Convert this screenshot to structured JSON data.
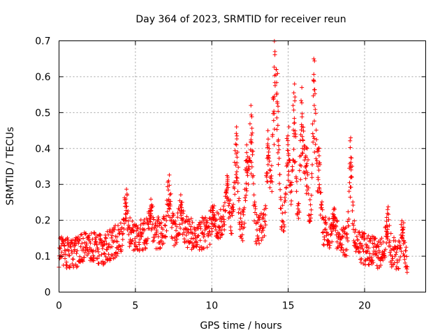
{
  "chart_data": {
    "type": "scatter",
    "title": "Day 364 of 2023, SRMTID for receiver reun",
    "xlabel": "GPS time / hours",
    "ylabel": "SRMTID / TECUs",
    "xlim": [
      0,
      24
    ],
    "ylim": [
      0,
      0.7
    ],
    "xticks": [
      0,
      5,
      10,
      15,
      20
    ],
    "xtick_labels": [
      "0",
      "5",
      "10",
      "15",
      "20"
    ],
    "yticks": [
      0,
      0.1,
      0.2,
      0.3,
      0.4,
      0.5,
      0.6,
      0.7
    ],
    "ytick_labels": [
      "0",
      "0.1",
      "0.2",
      "0.3",
      "0.4",
      "0.5",
      "0.6",
      "0.7"
    ],
    "grid": true,
    "marker": "+",
    "marker_color": "#ff0000",
    "series": [
      {
        "name": "SRMTID",
        "x_start": 0.0,
        "x_end": 22.8,
        "sample_count": 1400,
        "baseline_profile": [
          [
            0.0,
            0.11
          ],
          [
            1.0,
            0.11
          ],
          [
            2.0,
            0.13
          ],
          [
            3.0,
            0.12
          ],
          [
            4.0,
            0.15
          ],
          [
            5.0,
            0.16
          ],
          [
            6.0,
            0.16
          ],
          [
            7.0,
            0.17
          ],
          [
            8.0,
            0.17
          ],
          [
            9.0,
            0.16
          ],
          [
            10.0,
            0.17
          ],
          [
            11.0,
            0.2
          ],
          [
            12.0,
            0.18
          ],
          [
            13.0,
            0.17
          ],
          [
            14.0,
            0.2
          ],
          [
            15.0,
            0.19
          ],
          [
            16.0,
            0.17
          ],
          [
            17.0,
            0.18
          ],
          [
            18.0,
            0.15
          ],
          [
            19.0,
            0.13
          ],
          [
            20.0,
            0.12
          ],
          [
            21.0,
            0.11
          ],
          [
            22.0,
            0.11
          ],
          [
            22.8,
            0.09
          ]
        ],
        "scatter_spread": 0.045,
        "peaks": [
          {
            "x": 4.4,
            "y": 0.27
          },
          {
            "x": 6.0,
            "y": 0.24
          },
          {
            "x": 7.2,
            "y": 0.31
          },
          {
            "x": 8.0,
            "y": 0.25
          },
          {
            "x": 10.1,
            "y": 0.24
          },
          {
            "x": 11.0,
            "y": 0.32
          },
          {
            "x": 11.6,
            "y": 0.46
          },
          {
            "x": 12.3,
            "y": 0.41
          },
          {
            "x": 12.6,
            "y": 0.52
          },
          {
            "x": 13.7,
            "y": 0.45
          },
          {
            "x": 14.1,
            "y": 0.67
          },
          {
            "x": 14.3,
            "y": 0.55
          },
          {
            "x": 15.0,
            "y": 0.46
          },
          {
            "x": 15.4,
            "y": 0.58
          },
          {
            "x": 15.9,
            "y": 0.57
          },
          {
            "x": 16.2,
            "y": 0.4
          },
          {
            "x": 16.7,
            "y": 0.65
          },
          {
            "x": 17.0,
            "y": 0.4
          },
          {
            "x": 18.0,
            "y": 0.21
          },
          {
            "x": 19.1,
            "y": 0.43
          },
          {
            "x": 21.5,
            "y": 0.23
          },
          {
            "x": 22.5,
            "y": 0.18
          }
        ]
      }
    ]
  }
}
